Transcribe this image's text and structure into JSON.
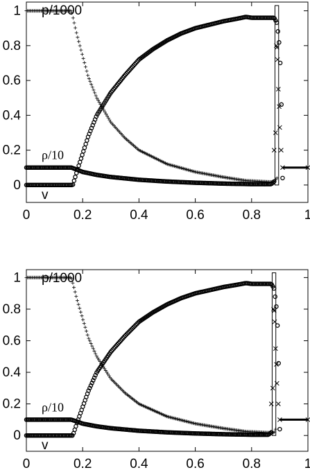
{
  "chart_data": [
    {
      "type": "line",
      "xlim": [
        0,
        1
      ],
      "ylim": [
        -0.1,
        1.05
      ],
      "xticks": [
        "0",
        "0.2",
        "0.4",
        "0.6",
        "0.8",
        "1"
      ],
      "yticks": [
        "0",
        "0.2",
        "0.4",
        "0.6",
        "0.8",
        "1"
      ],
      "grid": false,
      "labels": {
        "pressure": "p/1000",
        "density": "ρ/10",
        "velocity": "v"
      },
      "series": [
        {
          "name": "p/1000",
          "marker": "plus",
          "x": [
            0.0,
            0.16,
            0.18,
            0.2,
            0.22,
            0.25,
            0.3,
            0.35,
            0.4,
            0.5,
            0.6,
            0.7,
            0.78,
            0.86,
            0.88,
            0.89
          ],
          "y": [
            1.0,
            1.0,
            0.86,
            0.74,
            0.62,
            0.5,
            0.36,
            0.27,
            0.2,
            0.12,
            0.075,
            0.045,
            0.025,
            0.018,
            0.018,
            0.04
          ]
        },
        {
          "name": "v",
          "marker": "circle",
          "x": [
            0.0,
            0.165,
            0.18,
            0.2,
            0.22,
            0.25,
            0.3,
            0.35,
            0.4,
            0.45,
            0.5,
            0.55,
            0.6,
            0.65,
            0.7,
            0.75,
            0.78,
            0.8,
            0.88,
            0.89,
            0.895,
            0.9,
            0.905,
            0.91
          ],
          "y": [
            0.0,
            0.0,
            0.08,
            0.18,
            0.28,
            0.4,
            0.53,
            0.63,
            0.72,
            0.78,
            0.83,
            0.87,
            0.9,
            0.92,
            0.94,
            0.955,
            0.965,
            0.96,
            0.96,
            0.93,
            0.86,
            0.78,
            0.55,
            0.04
          ]
        },
        {
          "name": "ρ/10",
          "marker": "circle",
          "x": [
            0.0,
            0.16,
            0.18,
            0.2,
            0.25,
            0.3,
            0.4,
            0.5,
            0.6,
            0.7,
            0.8,
            0.87,
            0.88
          ],
          "y": [
            0.1,
            0.1,
            0.088,
            0.075,
            0.058,
            0.046,
            0.03,
            0.02,
            0.013,
            0.008,
            0.005,
            0.005,
            0.02
          ]
        },
        {
          "name": "",
          "marker": "cross",
          "x": [
            0.88,
            0.885,
            0.888,
            0.89,
            0.892,
            0.895,
            0.898,
            0.9,
            0.905,
            0.91,
            1.0
          ],
          "y": [
            0.2,
            0.3,
            0.8,
            0.79,
            0.72,
            0.55,
            0.45,
            0.33,
            0.2,
            0.1,
            0.1
          ]
        }
      ],
      "shock_bar": {
        "x": [
          0.883,
          0.896
        ],
        "ymax": 1.03
      }
    },
    {
      "type": "line",
      "xlim": [
        0,
        1
      ],
      "ylim": [
        -0.1,
        1.05
      ],
      "xticks": [
        "0",
        "0.2",
        "0.4",
        "0.6",
        "0.8",
        "1"
      ],
      "yticks": [
        "0",
        "0.2",
        "0.4",
        "0.6",
        "0.8",
        "1"
      ],
      "grid": false,
      "labels": {
        "pressure": "p/1000",
        "density": "ρ/10",
        "velocity": "v"
      },
      "series": [
        {
          "name": "p/1000",
          "marker": "plus",
          "x": [
            0.0,
            0.16,
            0.18,
            0.2,
            0.22,
            0.25,
            0.3,
            0.35,
            0.4,
            0.5,
            0.6,
            0.7,
            0.78,
            0.86,
            0.88,
            0.885
          ],
          "y": [
            1.0,
            1.0,
            0.86,
            0.74,
            0.62,
            0.5,
            0.36,
            0.27,
            0.2,
            0.12,
            0.075,
            0.045,
            0.025,
            0.018,
            0.018,
            0.04
          ]
        },
        {
          "name": "v",
          "marker": "circle",
          "x": [
            0.0,
            0.165,
            0.18,
            0.2,
            0.22,
            0.25,
            0.3,
            0.35,
            0.4,
            0.45,
            0.5,
            0.55,
            0.6,
            0.65,
            0.7,
            0.75,
            0.78,
            0.8,
            0.87,
            0.88,
            0.885,
            0.89,
            0.895,
            0.9
          ],
          "y": [
            0.0,
            0.0,
            0.08,
            0.18,
            0.28,
            0.4,
            0.53,
            0.63,
            0.72,
            0.78,
            0.83,
            0.87,
            0.9,
            0.92,
            0.94,
            0.955,
            0.965,
            0.96,
            0.96,
            0.93,
            0.86,
            0.78,
            0.55,
            0.04
          ]
        },
        {
          "name": "ρ/10",
          "marker": "circle",
          "x": [
            0.0,
            0.16,
            0.18,
            0.2,
            0.25,
            0.3,
            0.4,
            0.5,
            0.6,
            0.7,
            0.8,
            0.86,
            0.87
          ],
          "y": [
            0.1,
            0.1,
            0.088,
            0.075,
            0.058,
            0.046,
            0.03,
            0.02,
            0.013,
            0.008,
            0.005,
            0.005,
            0.02
          ]
        },
        {
          "name": "",
          "marker": "cross",
          "x": [
            0.87,
            0.875,
            0.878,
            0.88,
            0.882,
            0.885,
            0.888,
            0.89,
            0.895,
            0.9,
            1.0
          ],
          "y": [
            0.2,
            0.3,
            0.8,
            0.79,
            0.72,
            0.55,
            0.45,
            0.33,
            0.2,
            0.1,
            0.1
          ]
        }
      ],
      "shock_bar": {
        "x": [
          0.873,
          0.886
        ],
        "ymax": 1.03
      }
    }
  ]
}
